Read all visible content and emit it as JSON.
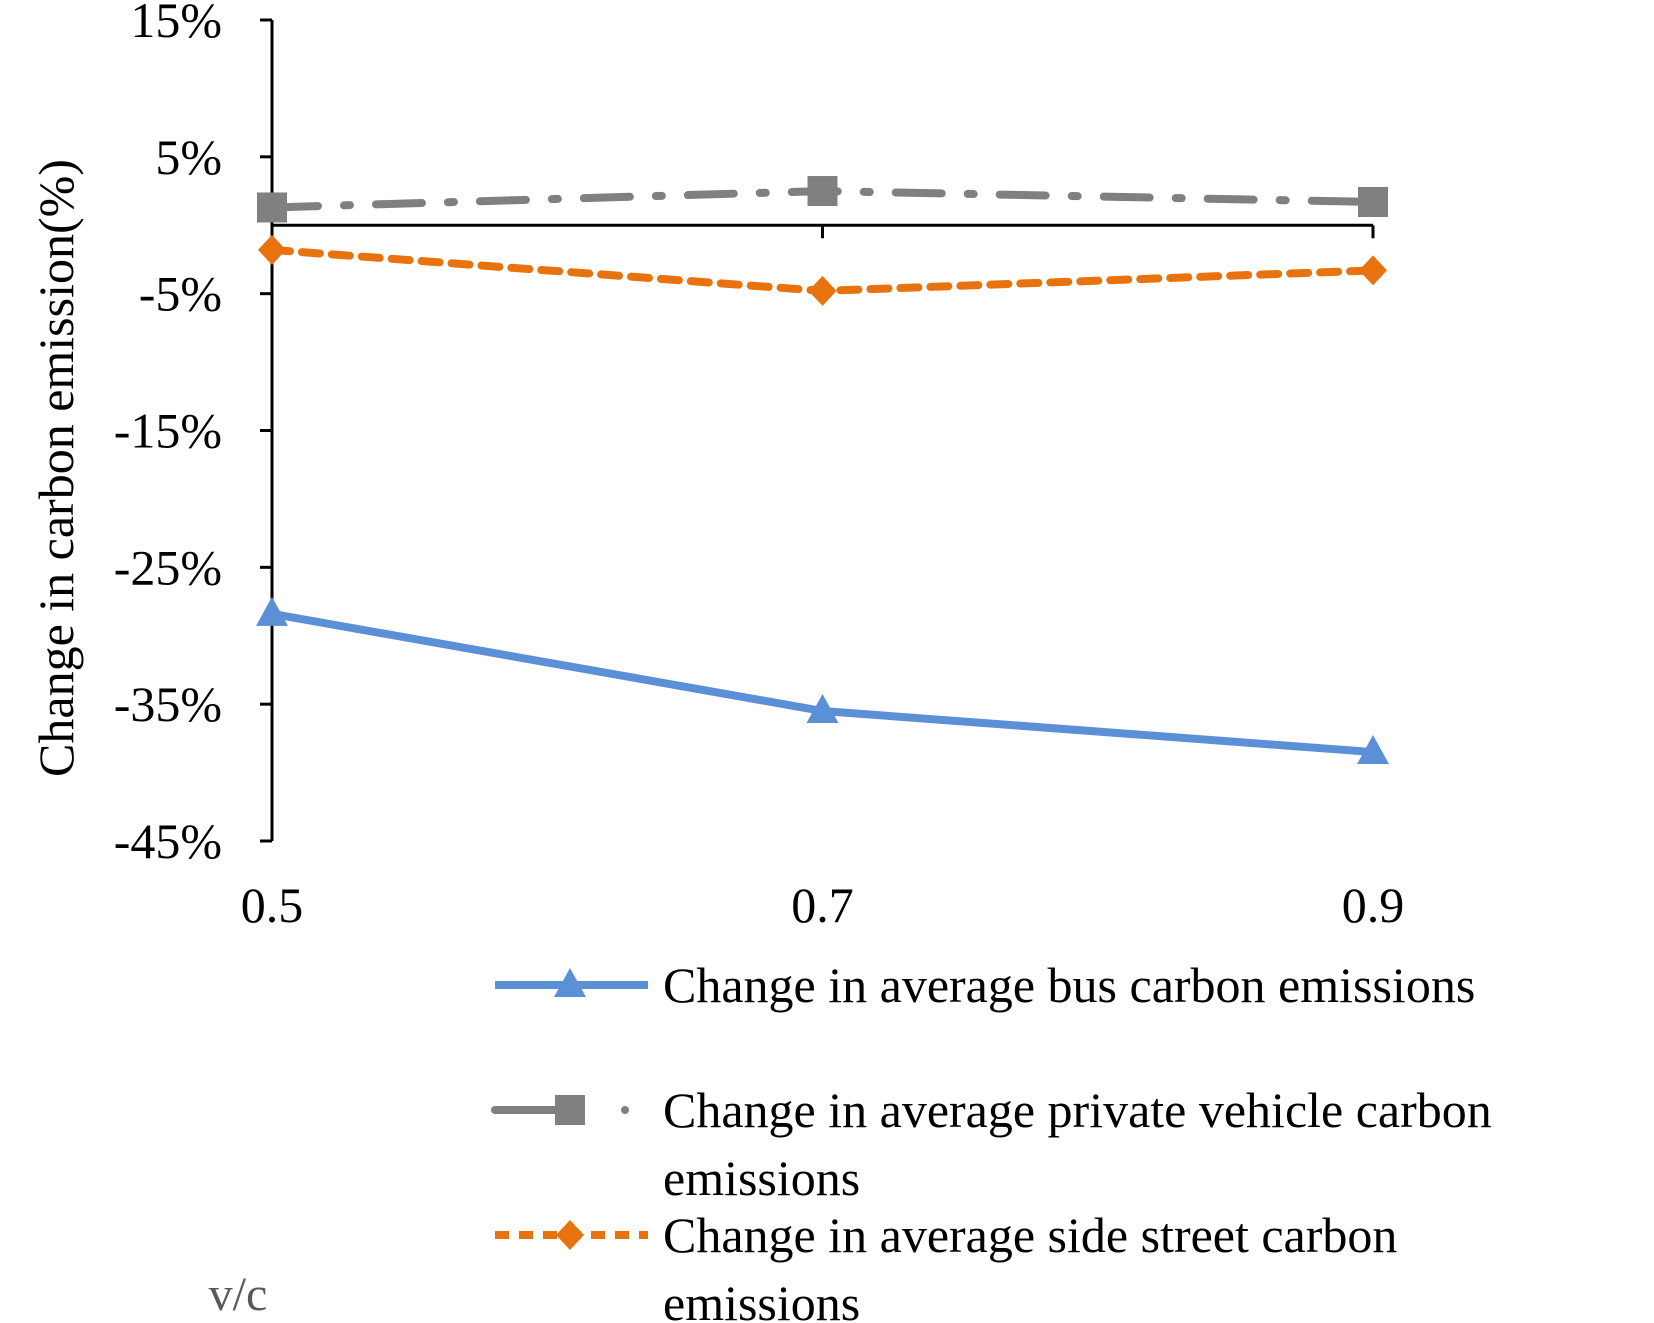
{
  "chart_data": {
    "type": "line",
    "title": "",
    "xlabel": "v/c",
    "ylabel": "Change in carbon emission(%)",
    "categories": [
      "0.5",
      "0.7",
      "0.9"
    ],
    "ylim": [
      -45,
      15
    ],
    "yticks": [
      15,
      5,
      -5,
      -15,
      -25,
      -35,
      -45
    ],
    "ytick_labels": [
      "15%",
      "5%",
      "-5%",
      "-15%",
      "-25%",
      "-35%",
      "-45%"
    ],
    "grid": false,
    "legend_position": "bottom-right",
    "series": [
      {
        "name": "Change in average bus carbon emissions",
        "values": [
          -28.4,
          -35.5,
          -38.5
        ],
        "color": "#5B8FD6",
        "marker": "triangle",
        "line_style": "solid",
        "legend_lines": [
          "Change in average bus carbon emissions"
        ]
      },
      {
        "name": "Change in average private vehicle carbon emissions",
        "values": [
          1.3,
          2.5,
          1.7
        ],
        "color": "#808080",
        "marker": "square",
        "line_style": "dash-dot",
        "legend_lines": [
          "Change in average private vehicle carbon",
          "emissions"
        ]
      },
      {
        "name": "Change in average side street carbon emissions",
        "values": [
          -1.8,
          -4.8,
          -3.3
        ],
        "color": "#E8730E",
        "marker": "diamond",
        "line_style": "dashed",
        "legend_lines": [
          "Change in average side street carbon",
          "emissions"
        ]
      }
    ]
  }
}
